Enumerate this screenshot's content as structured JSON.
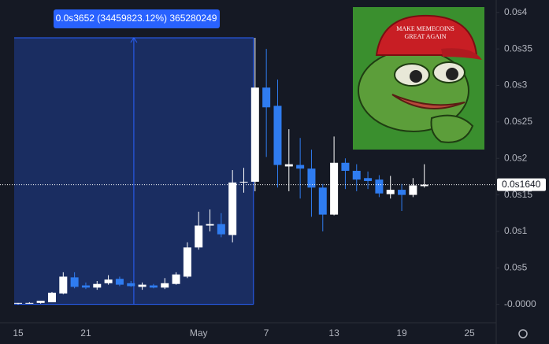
{
  "chart_data": {
    "type": "candlestick",
    "categories": [
      "15",
      null,
      null,
      null,
      null,
      null,
      "21",
      null,
      null,
      null,
      null,
      null,
      null,
      null,
      null,
      null,
      "May",
      null,
      null,
      null,
      null,
      null,
      "7",
      null,
      null,
      null,
      null,
      null,
      "13",
      null,
      null,
      null,
      null,
      null,
      "19",
      null,
      null,
      null,
      null,
      null,
      "25"
    ],
    "open": [
      0.01,
      0.02,
      0.02,
      0.03,
      0.15,
      0.37,
      0.26,
      0.23,
      0.29,
      0.35,
      0.29,
      0.24,
      0.26,
      0.23,
      0.28,
      0.38,
      0.78,
      1.08,
      1.1,
      0.95,
      1.67,
      1.68,
      2.97,
      2.72,
      1.89,
      1.91,
      1.86,
      1.6,
      1.23,
      1.94,
      1.83,
      1.73,
      1.71,
      1.51,
      1.57,
      1.5,
      1.62,
      null,
      null,
      null,
      null
    ],
    "high": [
      0.02,
      0.03,
      0.05,
      0.17,
      0.44,
      0.44,
      0.3,
      0.32,
      0.4,
      0.38,
      0.32,
      0.3,
      0.28,
      0.36,
      0.44,
      0.85,
      1.27,
      1.3,
      1.25,
      1.84,
      1.87,
      3.652,
      3.5,
      3.08,
      2.4,
      2.28,
      2.12,
      1.65,
      2.3,
      2.0,
      1.92,
      1.82,
      1.77,
      1.76,
      1.65,
      1.73,
      1.92,
      null,
      null,
      null,
      null
    ],
    "low": [
      0.0,
      0.01,
      0.01,
      0.03,
      0.14,
      0.22,
      0.21,
      0.2,
      0.27,
      0.25,
      0.24,
      0.2,
      0.22,
      0.21,
      0.27,
      0.36,
      0.75,
      1.0,
      0.92,
      0.85,
      1.53,
      1.55,
      2.02,
      1.6,
      1.55,
      1.45,
      1.2,
      1.0,
      1.22,
      1.58,
      1.55,
      1.58,
      1.47,
      1.45,
      1.28,
      1.47,
      1.6,
      null,
      null,
      null,
      null
    ],
    "close": [
      0.02,
      0.02,
      0.05,
      0.16,
      0.38,
      0.24,
      0.23,
      0.28,
      0.34,
      0.27,
      0.25,
      0.27,
      0.23,
      0.29,
      0.41,
      0.78,
      1.08,
      1.1,
      0.96,
      1.67,
      1.68,
      2.97,
      2.7,
      1.91,
      1.92,
      1.86,
      1.6,
      1.23,
      1.94,
      1.83,
      1.71,
      1.69,
      1.52,
      1.57,
      1.5,
      1.63,
      1.64,
      null,
      null,
      null,
      null
    ],
    "up_color": "#ffffff",
    "down_color": "#2f7cf0",
    "ylim": [
      -0.23,
      4.17
    ],
    "yticks": [
      {
        "value": 4,
        "label": "0.0s4"
      },
      {
        "value": 3.5,
        "label": "0.0s35"
      },
      {
        "value": 3,
        "label": "0.0s3"
      },
      {
        "value": 2.5,
        "label": "0.0s25"
      },
      {
        "value": 2,
        "label": "0.0s2"
      },
      {
        "value": 1.5,
        "label": "0.0s15"
      },
      {
        "value": 1,
        "label": "0.0s1"
      },
      {
        "value": 0.5,
        "label": "0.0s5"
      },
      {
        "value": 0,
        "label": "-0.0000"
      }
    ],
    "last_price": {
      "value": 1.64,
      "label": "0.0s1640"
    },
    "measure_label": "0.0s3652 (34459823.12%) 365280249",
    "image_caption": [
      "MAKE MEMECOINS",
      "GREAT AGAIN"
    ]
  }
}
